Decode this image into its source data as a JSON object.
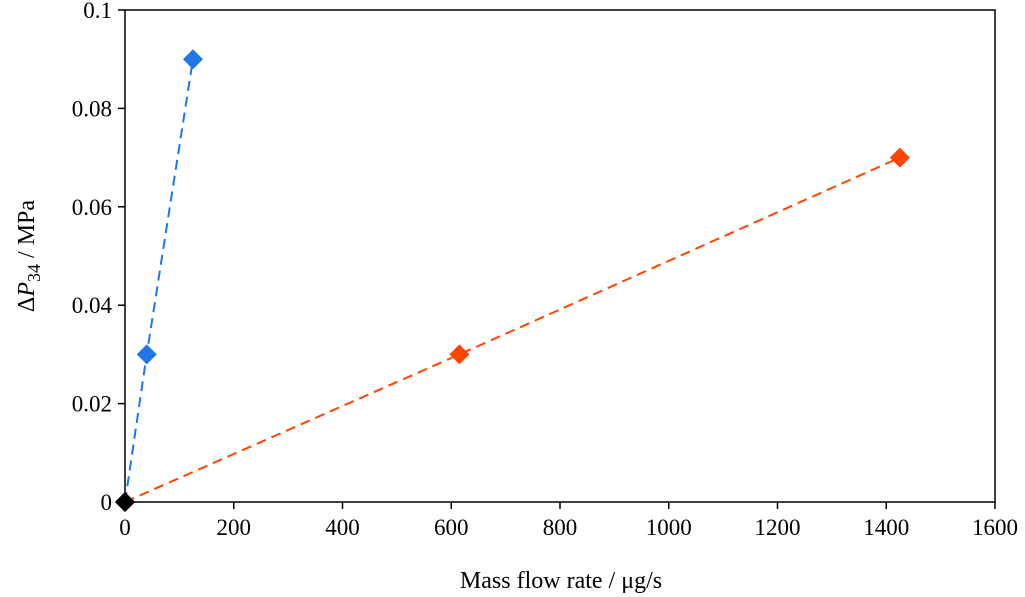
{
  "chart_data": {
    "type": "scatter",
    "title": "",
    "xlabel": "Mass flow rate / μg/s",
    "ylabel": {
      "prefix": "Δ",
      "symbol": "P",
      "subscript": "34",
      "suffix": " / MPa"
    },
    "xlim": [
      0,
      1600
    ],
    "ylim": [
      0,
      0.1
    ],
    "x_ticks": [
      0,
      200,
      400,
      600,
      800,
      1000,
      1200,
      1400,
      1600
    ],
    "x_tick_labels": [
      "0",
      "200",
      "400",
      "600",
      "800",
      "1000",
      "1200",
      "1400",
      "1600"
    ],
    "y_ticks": [
      0,
      0.02,
      0.04,
      0.06,
      0.08,
      0.1
    ],
    "y_tick_labels": [
      "0",
      "0.02",
      "0.04",
      "0.06",
      "0.08",
      "0.1"
    ],
    "grid": false,
    "legend": "none",
    "series": [
      {
        "color": "#1f77e6",
        "marker": "diamond",
        "line": "dashed",
        "points": [
          [
            0,
            0
          ],
          [
            40,
            0.03
          ],
          [
            125,
            0.09
          ]
        ]
      },
      {
        "color": "#ff4500",
        "marker": "diamond",
        "line": "dashed",
        "points": [
          [
            0,
            0
          ],
          [
            615,
            0.03
          ],
          [
            1425,
            0.07
          ]
        ]
      },
      {
        "color": "#000000",
        "marker": "diamond",
        "line": "none",
        "points": [
          [
            0,
            0
          ]
        ]
      }
    ]
  }
}
